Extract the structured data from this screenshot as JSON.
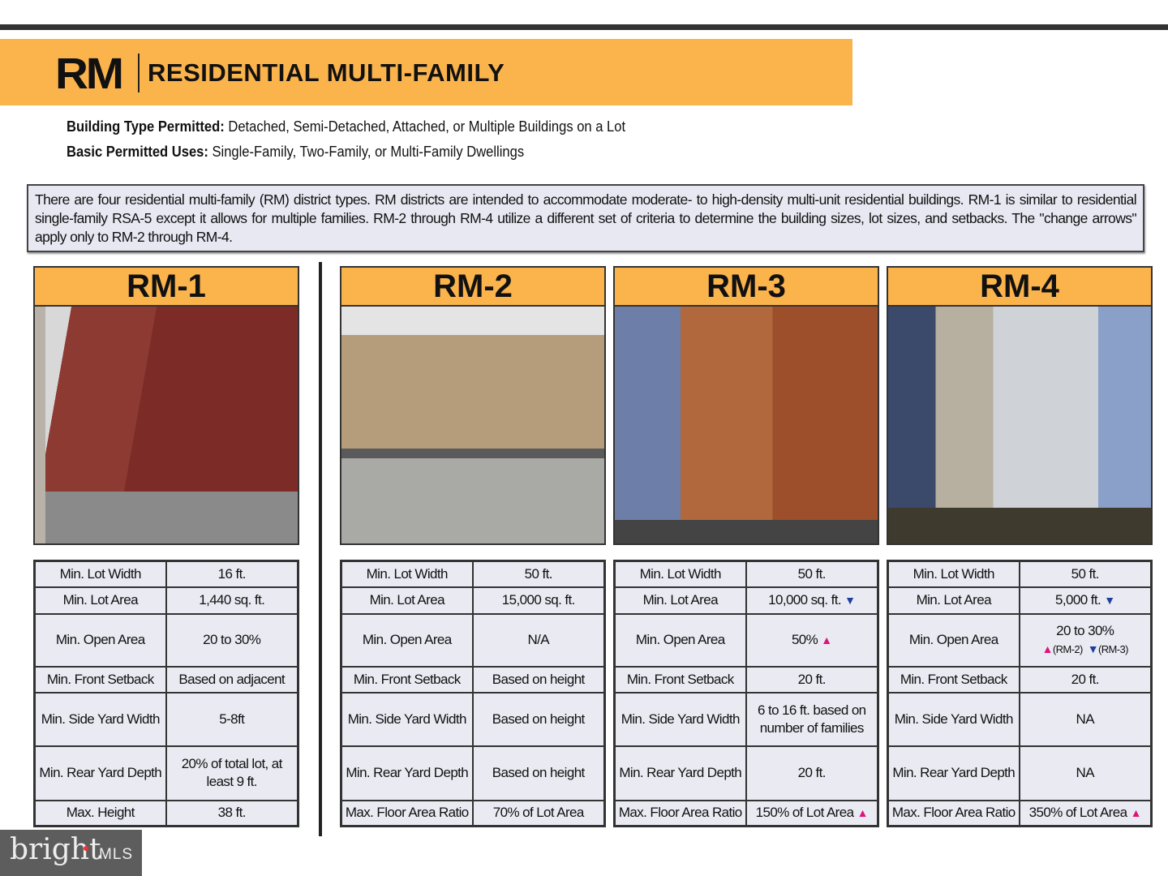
{
  "header": {
    "abbr": "RM",
    "title": "RESIDENTIAL MULTI-FAMILY"
  },
  "building_type": {
    "label": "Building Type Permitted:",
    "value": " Detached, Semi-Detached, Attached, or Multiple Buildings on a Lot"
  },
  "permitted_uses": {
    "label": "Basic Permitted Uses:",
    "value": " Single-Family, Two-Family, or Multi-Family Dwellings"
  },
  "description": "There are four residential multi-family (RM) district types. RM districts are intended to accommodate moderate- to high-density multi-unit residential buildings. RM-1 is similar to residential single-family RSA-5 except it allows for multiple families. RM-2 through RM-4 utilize a different set of criteria to determine the building sizes, lot sizes, and setbacks. The \"change arrows\" apply only to RM-2 through RM-4.",
  "colors": {
    "accent": "#fbb34c",
    "up_arrow": "#e0127a",
    "down_arrow": "#1f3fa0",
    "table_bg": "#eaeaf3"
  },
  "districts": [
    {
      "name": "RM-1",
      "rows": [
        {
          "label": "Min. Lot Width",
          "value": "16 ft."
        },
        {
          "label": "Min. Lot Area",
          "value": "1,440 sq. ft."
        },
        {
          "label": "Min. Open Area",
          "value": "20 to 30%"
        },
        {
          "label": "Min. Front Setback",
          "value": "Based on adjacent"
        },
        {
          "label": "Min. Side Yard Width",
          "value": "5-8ft"
        },
        {
          "label": "Min. Rear Yard Depth",
          "value": "20% of total lot, at least 9 ft."
        },
        {
          "label": "Max. Height",
          "value": "38 ft."
        }
      ]
    },
    {
      "name": "RM-2",
      "rows": [
        {
          "label": "Min. Lot Width",
          "value": "50 ft."
        },
        {
          "label": "Min. Lot Area",
          "value": "15,000 sq. ft."
        },
        {
          "label": "Min. Open Area",
          "value": "N/A"
        },
        {
          "label": "Min. Front Setback",
          "value": "Based on height"
        },
        {
          "label": "Min. Side Yard Width",
          "value": "Based on height"
        },
        {
          "label": "Min. Rear Yard Depth",
          "value": "Based on height"
        },
        {
          "label": "Max. Floor Area Ratio",
          "value": "70% of Lot Area"
        }
      ]
    },
    {
      "name": "RM-3",
      "rows": [
        {
          "label": "Min. Lot Width",
          "value": "50 ft."
        },
        {
          "label": "Min. Lot Area",
          "value": "10,000 sq. ft.",
          "arrow": "down"
        },
        {
          "label": "Min. Open Area",
          "value": "50%",
          "arrow": "up"
        },
        {
          "label": "Min. Front Setback",
          "value": "20 ft."
        },
        {
          "label": "Min. Side Yard Width",
          "value": "6 to 16 ft. based on number of families"
        },
        {
          "label": "Min. Rear Yard Depth",
          "value": "20 ft."
        },
        {
          "label": "Max. Floor Area Ratio",
          "value": "150% of Lot Area",
          "arrow": "up"
        }
      ]
    },
    {
      "name": "RM-4",
      "rows": [
        {
          "label": "Min. Lot Width",
          "value": "50 ft."
        },
        {
          "label": "Min. Lot Area",
          "value": "5,000 ft.",
          "arrow": "down"
        },
        {
          "label": "Min. Open Area",
          "value": "20 to 30%",
          "notes": [
            {
              "arrow": "up",
              "text": "(RM-2)"
            },
            {
              "arrow": "down",
              "text": "(RM-3)"
            }
          ]
        },
        {
          "label": "Min. Front Setback",
          "value": "20 ft."
        },
        {
          "label": "Min. Side Yard Width",
          "value": "NA"
        },
        {
          "label": "Min. Rear Yard Depth",
          "value": "NA"
        },
        {
          "label": "Max. Floor Area Ratio",
          "value": "350% of Lot Area",
          "arrow": "up"
        }
      ]
    }
  ],
  "logo": {
    "text": "bright",
    "suffix": "MLS"
  }
}
